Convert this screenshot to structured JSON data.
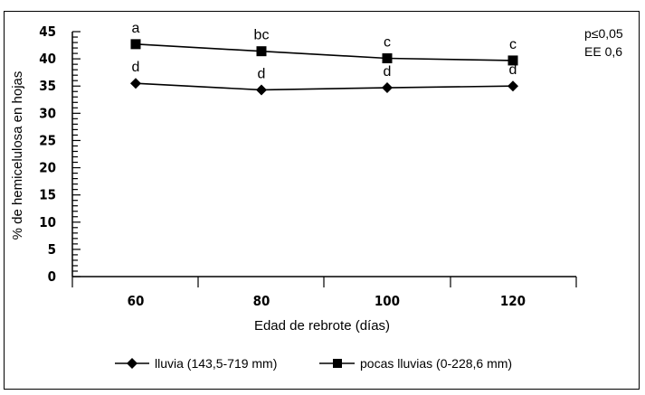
{
  "chart_data": {
    "type": "line",
    "title": "",
    "xlabel": "Edad de rebrote (días)",
    "ylabel": "% de hemicelulosa en hojas",
    "x": [
      60,
      80,
      100,
      120
    ],
    "x_tick_labels": [
      "60",
      "80",
      "100",
      "120"
    ],
    "ylim": [
      0,
      45
    ],
    "y_ticks": [
      0,
      5,
      10,
      15,
      20,
      25,
      30,
      35,
      40,
      45
    ],
    "y_tick_labels": [
      "0",
      "5",
      "10",
      "15",
      "20",
      "25",
      "30",
      "35",
      "40",
      "45"
    ],
    "grid": false,
    "legend_position": "bottom",
    "series": [
      {
        "name": "lluvia (143,5-719 mm)",
        "marker": "diamond",
        "values": [
          35.5,
          34.3,
          34.7,
          35.0
        ],
        "labels": [
          "d",
          "d",
          "d",
          "d"
        ]
      },
      {
        "name": "pocas lluvias (0-228,6 mm)",
        "marker": "square",
        "values": [
          42.7,
          41.4,
          40.1,
          39.7
        ],
        "labels": [
          "a",
          "bc",
          "c",
          "c"
        ]
      }
    ],
    "annotations": [
      "p≤0,05",
      "EE 0,6"
    ],
    "colors": {
      "line": "#000000"
    }
  }
}
